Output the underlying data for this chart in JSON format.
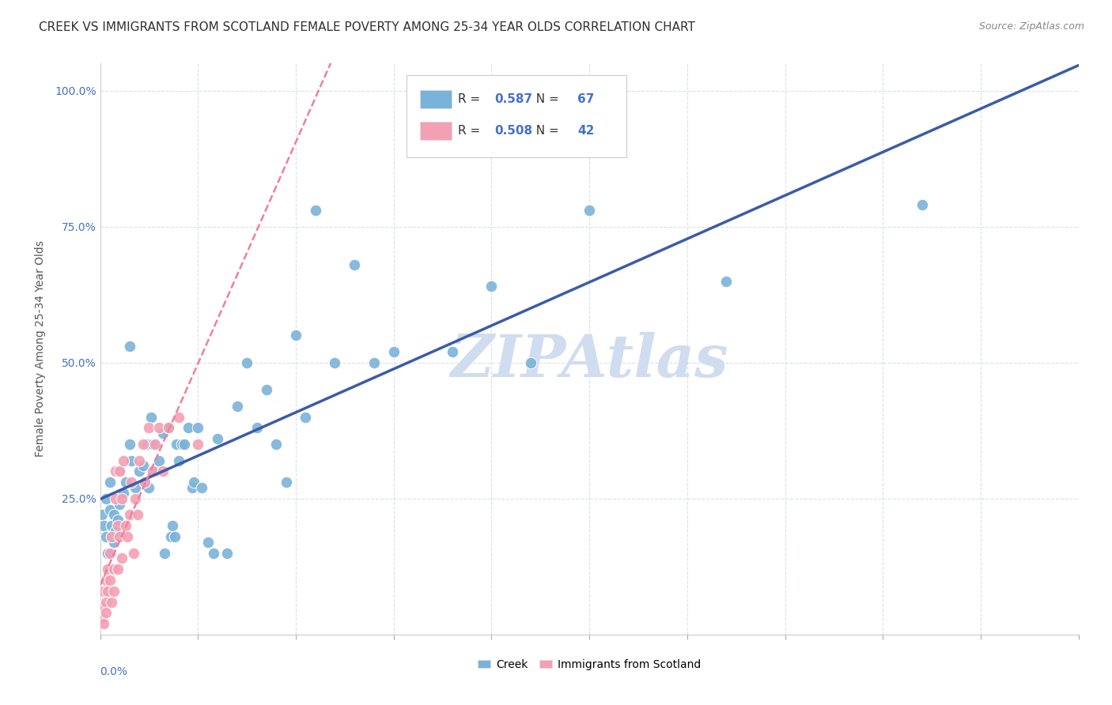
{
  "title": "CREEK VS IMMIGRANTS FROM SCOTLAND FEMALE POVERTY AMONG 25-34 YEAR OLDS CORRELATION CHART",
  "source": "Source: ZipAtlas.com",
  "ylabel": "Female Poverty Among 25-34 Year Olds",
  "creek_color": "#7ab3d9",
  "scotland_color": "#f4a0b4",
  "trendline_creek_color": "#3a5ca8",
  "trendline_scotland_color": "#f08098",
  "watermark": "ZIPAtlas",
  "watermark_color": "#d0dcf0",
  "creek_scatter_x": [
    0.001,
    0.002,
    0.003,
    0.003,
    0.004,
    0.005,
    0.005,
    0.006,
    0.007,
    0.007,
    0.008,
    0.009,
    0.01,
    0.01,
    0.012,
    0.013,
    0.015,
    0.015,
    0.016,
    0.018,
    0.02,
    0.022,
    0.023,
    0.024,
    0.025,
    0.026,
    0.027,
    0.028,
    0.03,
    0.032,
    0.033,
    0.035,
    0.036,
    0.037,
    0.038,
    0.039,
    0.04,
    0.042,
    0.043,
    0.045,
    0.047,
    0.048,
    0.05,
    0.052,
    0.055,
    0.058,
    0.06,
    0.065,
    0.07,
    0.075,
    0.08,
    0.085,
    0.09,
    0.095,
    0.1,
    0.105,
    0.11,
    0.12,
    0.13,
    0.14,
    0.15,
    0.18,
    0.2,
    0.22,
    0.25,
    0.32,
    0.42
  ],
  "creek_scatter_y": [
    0.22,
    0.2,
    0.18,
    0.25,
    0.15,
    0.23,
    0.28,
    0.2,
    0.22,
    0.17,
    0.19,
    0.21,
    0.3,
    0.24,
    0.26,
    0.28,
    0.35,
    0.53,
    0.32,
    0.27,
    0.3,
    0.31,
    0.28,
    0.35,
    0.27,
    0.4,
    0.35,
    0.3,
    0.32,
    0.37,
    0.15,
    0.38,
    0.18,
    0.2,
    0.18,
    0.35,
    0.32,
    0.35,
    0.35,
    0.38,
    0.27,
    0.28,
    0.38,
    0.27,
    0.17,
    0.15,
    0.36,
    0.15,
    0.42,
    0.5,
    0.38,
    0.45,
    0.35,
    0.28,
    0.55,
    0.4,
    0.78,
    0.5,
    0.68,
    0.5,
    0.52,
    0.52,
    0.64,
    0.5,
    0.78,
    0.65,
    0.79
  ],
  "scotland_scatter_x": [
    0.001,
    0.001,
    0.002,
    0.002,
    0.003,
    0.003,
    0.003,
    0.004,
    0.004,
    0.005,
    0.005,
    0.006,
    0.006,
    0.007,
    0.007,
    0.008,
    0.008,
    0.009,
    0.009,
    0.01,
    0.01,
    0.011,
    0.011,
    0.012,
    0.013,
    0.014,
    0.015,
    0.016,
    0.017,
    0.018,
    0.019,
    0.02,
    0.022,
    0.023,
    0.025,
    0.027,
    0.028,
    0.03,
    0.032,
    0.035,
    0.04,
    0.05
  ],
  "scotland_scatter_y": [
    0.03,
    0.05,
    0.08,
    0.02,
    0.06,
    0.1,
    0.04,
    0.08,
    0.12,
    0.1,
    0.15,
    0.06,
    0.18,
    0.08,
    0.12,
    0.25,
    0.3,
    0.12,
    0.2,
    0.18,
    0.3,
    0.14,
    0.25,
    0.32,
    0.2,
    0.18,
    0.22,
    0.28,
    0.15,
    0.25,
    0.22,
    0.32,
    0.35,
    0.28,
    0.38,
    0.3,
    0.35,
    0.38,
    0.3,
    0.38,
    0.4,
    0.35
  ],
  "xlim": [
    0.0,
    0.5
  ],
  "ylim": [
    0.0,
    1.05
  ],
  "background_color": "#ffffff",
  "grid_color": "#d8e0ec",
  "title_color": "#303030",
  "axis_label_color": "#555555",
  "tick_color": "#4472c4",
  "r_creek": "0.587",
  "n_creek": "67",
  "r_scotland": "0.508",
  "n_scotland": "42"
}
